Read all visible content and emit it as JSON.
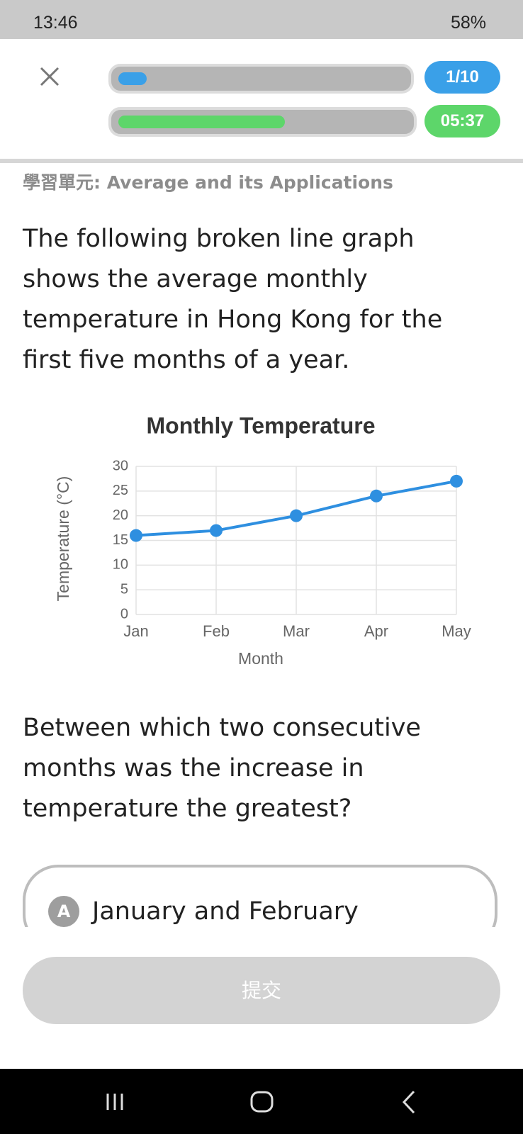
{
  "status_bar": {
    "time": "13:46",
    "battery": "58%"
  },
  "header": {
    "progress": "1/10",
    "timer": "05:37"
  },
  "unit": "學習單元: Average and its Applications",
  "question_intro": "The following broken line graph shows the average monthly temperature in Hong Kong for the first five months of a year.",
  "chart_data": {
    "type": "line",
    "title": "Monthly Temperature",
    "x_label": "Month",
    "y_label": "Temperature (°C)",
    "categories": [
      "Jan",
      "Feb",
      "Mar",
      "Apr",
      "May"
    ],
    "series": [
      {
        "name": "Temperature",
        "color": "#2e8fe0",
        "values": [
          16,
          17,
          20,
          24,
          27
        ]
      }
    ],
    "ylim": [
      0,
      30
    ],
    "yticks": [
      0,
      5,
      10,
      15,
      20,
      25,
      30
    ],
    "grid": true
  },
  "question": "Between which two consecutive months was the increase in temperature the greatest?",
  "options": [
    {
      "letter": "A",
      "text": "January and February"
    }
  ],
  "submit": "提交"
}
